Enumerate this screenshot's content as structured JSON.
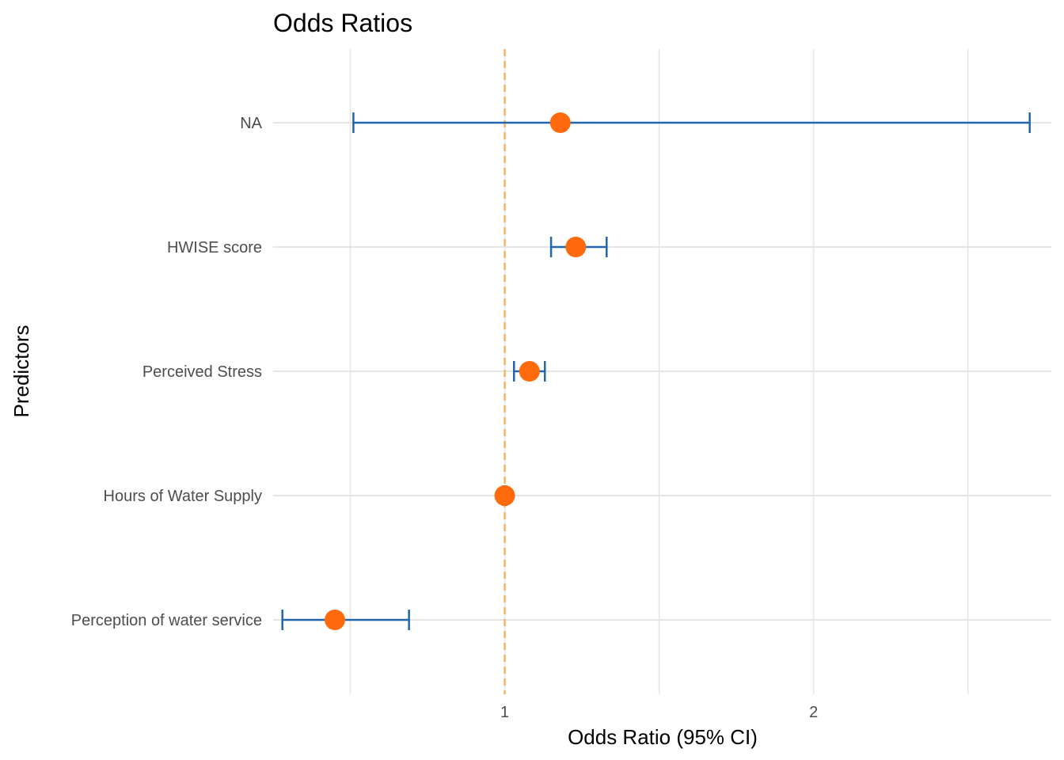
{
  "chart_data": {
    "type": "forest",
    "title": "Odds Ratios",
    "xlabel": "Odds Ratio (95% CI)",
    "ylabel": "Predictors",
    "xlim": [
      0.25,
      2.77
    ],
    "x_ticks": [
      1,
      2
    ],
    "x_minor_gridlines": [
      0.5,
      1.5,
      2.5
    ],
    "reference_line": 1,
    "grid": true,
    "colors": {
      "point": "#ff6a0d",
      "ci": "#2166ac",
      "reference": "#f5b461",
      "grid": "#e5e5e5"
    },
    "series": [
      {
        "predictor": "NA",
        "or": 1.18,
        "lower": 0.51,
        "upper": 2.7
      },
      {
        "predictor": "HWISE score",
        "or": 1.23,
        "lower": 1.15,
        "upper": 1.33
      },
      {
        "predictor": "Perceived Stress",
        "or": 1.08,
        "lower": 1.03,
        "upper": 1.13
      },
      {
        "predictor": "Hours of Water Supply",
        "or": 1.0,
        "lower": 0.995,
        "upper": 1.005
      },
      {
        "predictor": "Perception of water service",
        "or": 0.45,
        "lower": 0.28,
        "upper": 0.69
      }
    ]
  }
}
